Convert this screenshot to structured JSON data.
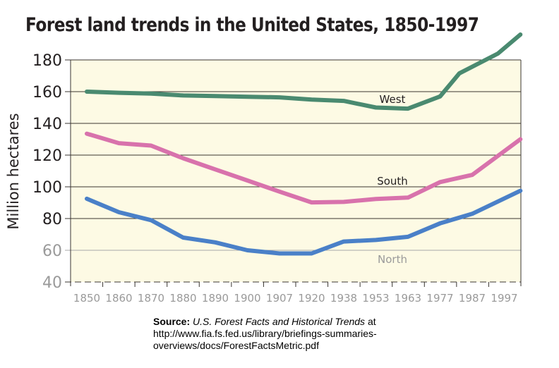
{
  "chart_data": {
    "type": "line",
    "title": "Forest land trends in the United States, 1850-1997",
    "xlabel": "",
    "ylabel": "Million hectares",
    "ylim": [
      40,
      180
    ],
    "yticks": [
      "180",
      "160",
      "140",
      "120",
      "100",
      "80",
      "60",
      "40"
    ],
    "ytick_values": [
      180,
      160,
      140,
      120,
      100,
      80,
      60,
      40
    ],
    "categories": [
      "1850",
      "1860",
      "1870",
      "1880",
      "1890",
      "1900",
      "1907",
      "1920",
      "1938",
      "1953",
      "1963",
      "1977",
      "1987",
      "1997"
    ],
    "grid": true,
    "legend": "inline labels",
    "series": [
      {
        "name": "West",
        "color": "#4a8a70",
        "label_color": "#231f20",
        "points": [
          [
            0,
            160
          ],
          [
            1,
            159.3
          ],
          [
            2,
            158.8
          ],
          [
            3,
            157.6
          ],
          [
            4,
            157.2
          ],
          [
            5,
            156.8
          ],
          [
            6,
            156.4
          ],
          [
            7,
            155
          ],
          [
            8,
            154.2
          ],
          [
            9,
            150
          ],
          [
            10,
            149.3
          ],
          [
            11,
            157
          ],
          [
            11.6,
            171.5
          ],
          [
            12.8,
            184
          ],
          [
            13.5,
            196
          ]
        ]
      },
      {
        "name": "South",
        "color": "#d872ac",
        "label_color": "#231f20",
        "points": [
          [
            0,
            133.5
          ],
          [
            1,
            127.5
          ],
          [
            2,
            126
          ],
          [
            3,
            118
          ],
          [
            4,
            111
          ],
          [
            5,
            104
          ],
          [
            6,
            97
          ],
          [
            7,
            90.2
          ],
          [
            8,
            90.5
          ],
          [
            9,
            92.3
          ],
          [
            10,
            93.2
          ],
          [
            11,
            103
          ],
          [
            12,
            107.5
          ],
          [
            13.5,
            130
          ]
        ]
      },
      {
        "name": "North",
        "color": "#4a80c8",
        "label_color": "#9a9a9a",
        "points": [
          [
            0,
            92.5
          ],
          [
            1,
            84
          ],
          [
            2,
            79
          ],
          [
            3,
            68
          ],
          [
            4,
            65
          ],
          [
            5,
            60
          ],
          [
            6,
            58
          ],
          [
            7,
            58
          ],
          [
            8,
            65.5
          ],
          [
            9,
            66.5
          ],
          [
            10,
            68.5
          ],
          [
            11,
            77
          ],
          [
            12,
            83
          ],
          [
            13.5,
            97.5
          ]
        ]
      }
    ]
  },
  "source": {
    "label": "Source:",
    "title": "U.S. Forest Facts and Historical Trends",
    "at": " at",
    "line2": "http://www.fia.fs.fed.us/library/briefings-summaries-",
    "line3": "overviews/docs/ForestFactsMetric.pdf"
  }
}
